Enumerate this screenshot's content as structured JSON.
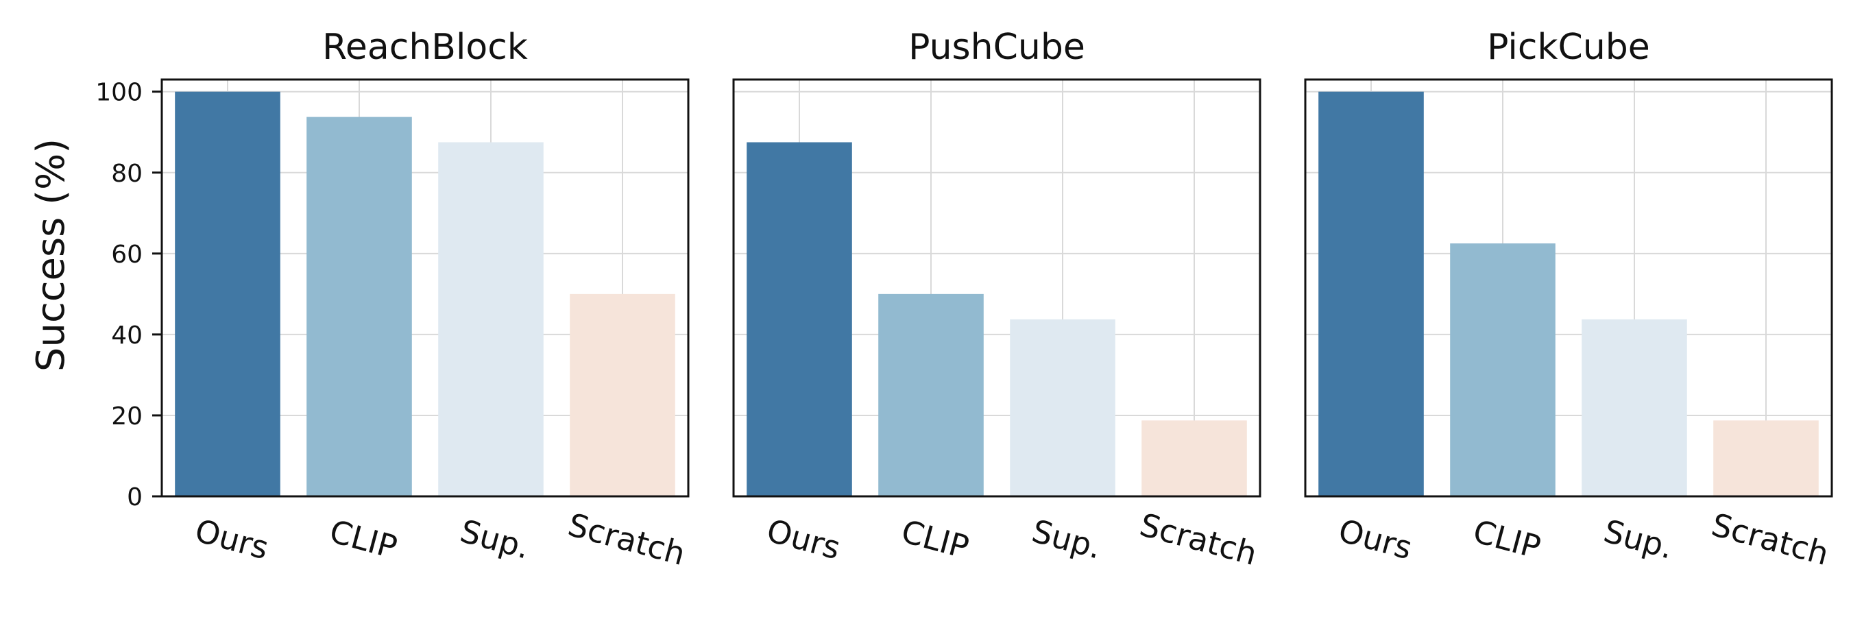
{
  "chart_data": {
    "type": "bar",
    "ylabel": "Success (%)",
    "ylim": [
      0,
      103
    ],
    "yticks": [
      0,
      20,
      40,
      60,
      80,
      100
    ],
    "grid": true,
    "categories": [
      "Ours",
      "CLIP",
      "Sup.",
      "Scratch"
    ],
    "colors": [
      "#4178a4",
      "#92bad0",
      "#dfe9f1",
      "#f6e4da"
    ],
    "panels": [
      {
        "title": "ReachBlock",
        "values": [
          100,
          93.75,
          87.5,
          50
        ]
      },
      {
        "title": "PushCube",
        "values": [
          87.5,
          50,
          43.75,
          18.75
        ]
      },
      {
        "title": "PickCube",
        "values": [
          100,
          62.5,
          43.75,
          18.75
        ]
      }
    ]
  }
}
